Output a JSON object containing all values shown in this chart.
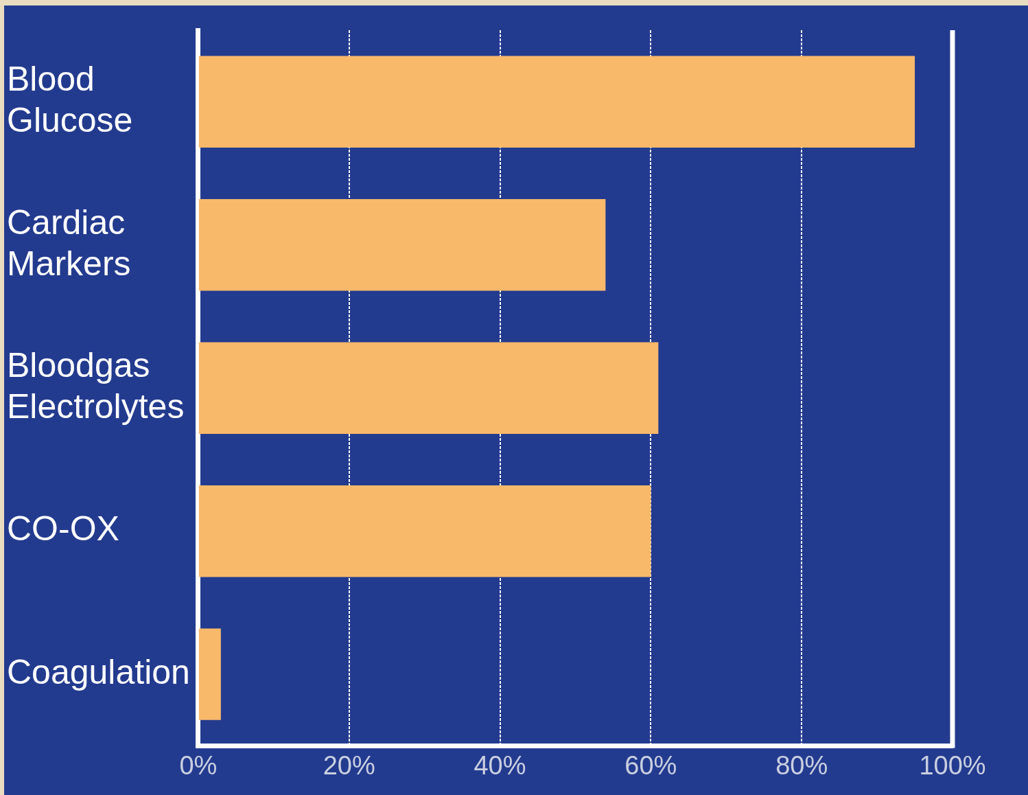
{
  "chart_data": {
    "type": "bar",
    "orientation": "horizontal",
    "categories": [
      "Blood Glucose",
      "Cardiac Markers",
      "Bloodgas Electrolytes",
      "CO-OX",
      "Coagulation"
    ],
    "values": [
      95,
      54,
      61,
      60,
      3
    ],
    "color": "#f9b96b",
    "xlim": [
      0,
      100
    ],
    "xticks": [
      {
        "value": 0,
        "label": "0%"
      },
      {
        "value": 20,
        "label": "20%"
      },
      {
        "value": 40,
        "label": "40%"
      },
      {
        "value": 60,
        "label": "60%"
      },
      {
        "value": 80,
        "label": "80%"
      },
      {
        "value": 100,
        "label": "100%"
      }
    ],
    "grid": "x",
    "legend": false
  }
}
